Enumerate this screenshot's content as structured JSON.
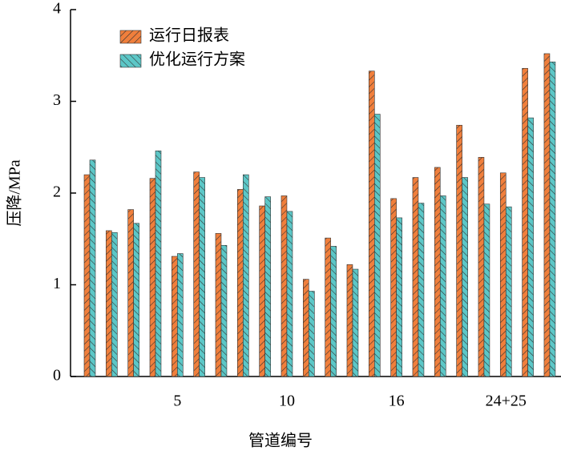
{
  "chart_data": {
    "type": "bar",
    "x_label": "管道编号",
    "y_label": "压降/MPa",
    "categories": [
      null,
      null,
      null,
      null,
      "5",
      null,
      null,
      null,
      null,
      "10",
      null,
      null,
      null,
      null,
      "16",
      null,
      null,
      null,
      null,
      "24+25",
      null,
      null
    ],
    "series": [
      {
        "name": "运行日报表",
        "color": "#f07f3c",
        "hatch": "/",
        "values": [
          2.2,
          1.59,
          1.82,
          2.16,
          1.31,
          2.23,
          1.56,
          2.04,
          1.86,
          1.97,
          1.06,
          1.51,
          1.22,
          3.33,
          1.94,
          2.17,
          2.28,
          2.74,
          2.39,
          2.22,
          3.36,
          3.52
        ]
      },
      {
        "name": "优化运行方案",
        "color": "#5cc7c7",
        "hatch": "\\",
        "values": [
          2.36,
          1.57,
          1.67,
          2.46,
          1.34,
          2.17,
          1.43,
          2.2,
          1.96,
          1.8,
          0.93,
          1.42,
          1.17,
          2.86,
          1.73,
          1.89,
          1.97,
          2.17,
          1.88,
          1.85,
          2.82,
          3.43
        ]
      }
    ],
    "ylim": [
      0,
      4
    ],
    "yticks": [
      0,
      1,
      2,
      3,
      4
    ],
    "grid": false,
    "legend": "upper left"
  }
}
